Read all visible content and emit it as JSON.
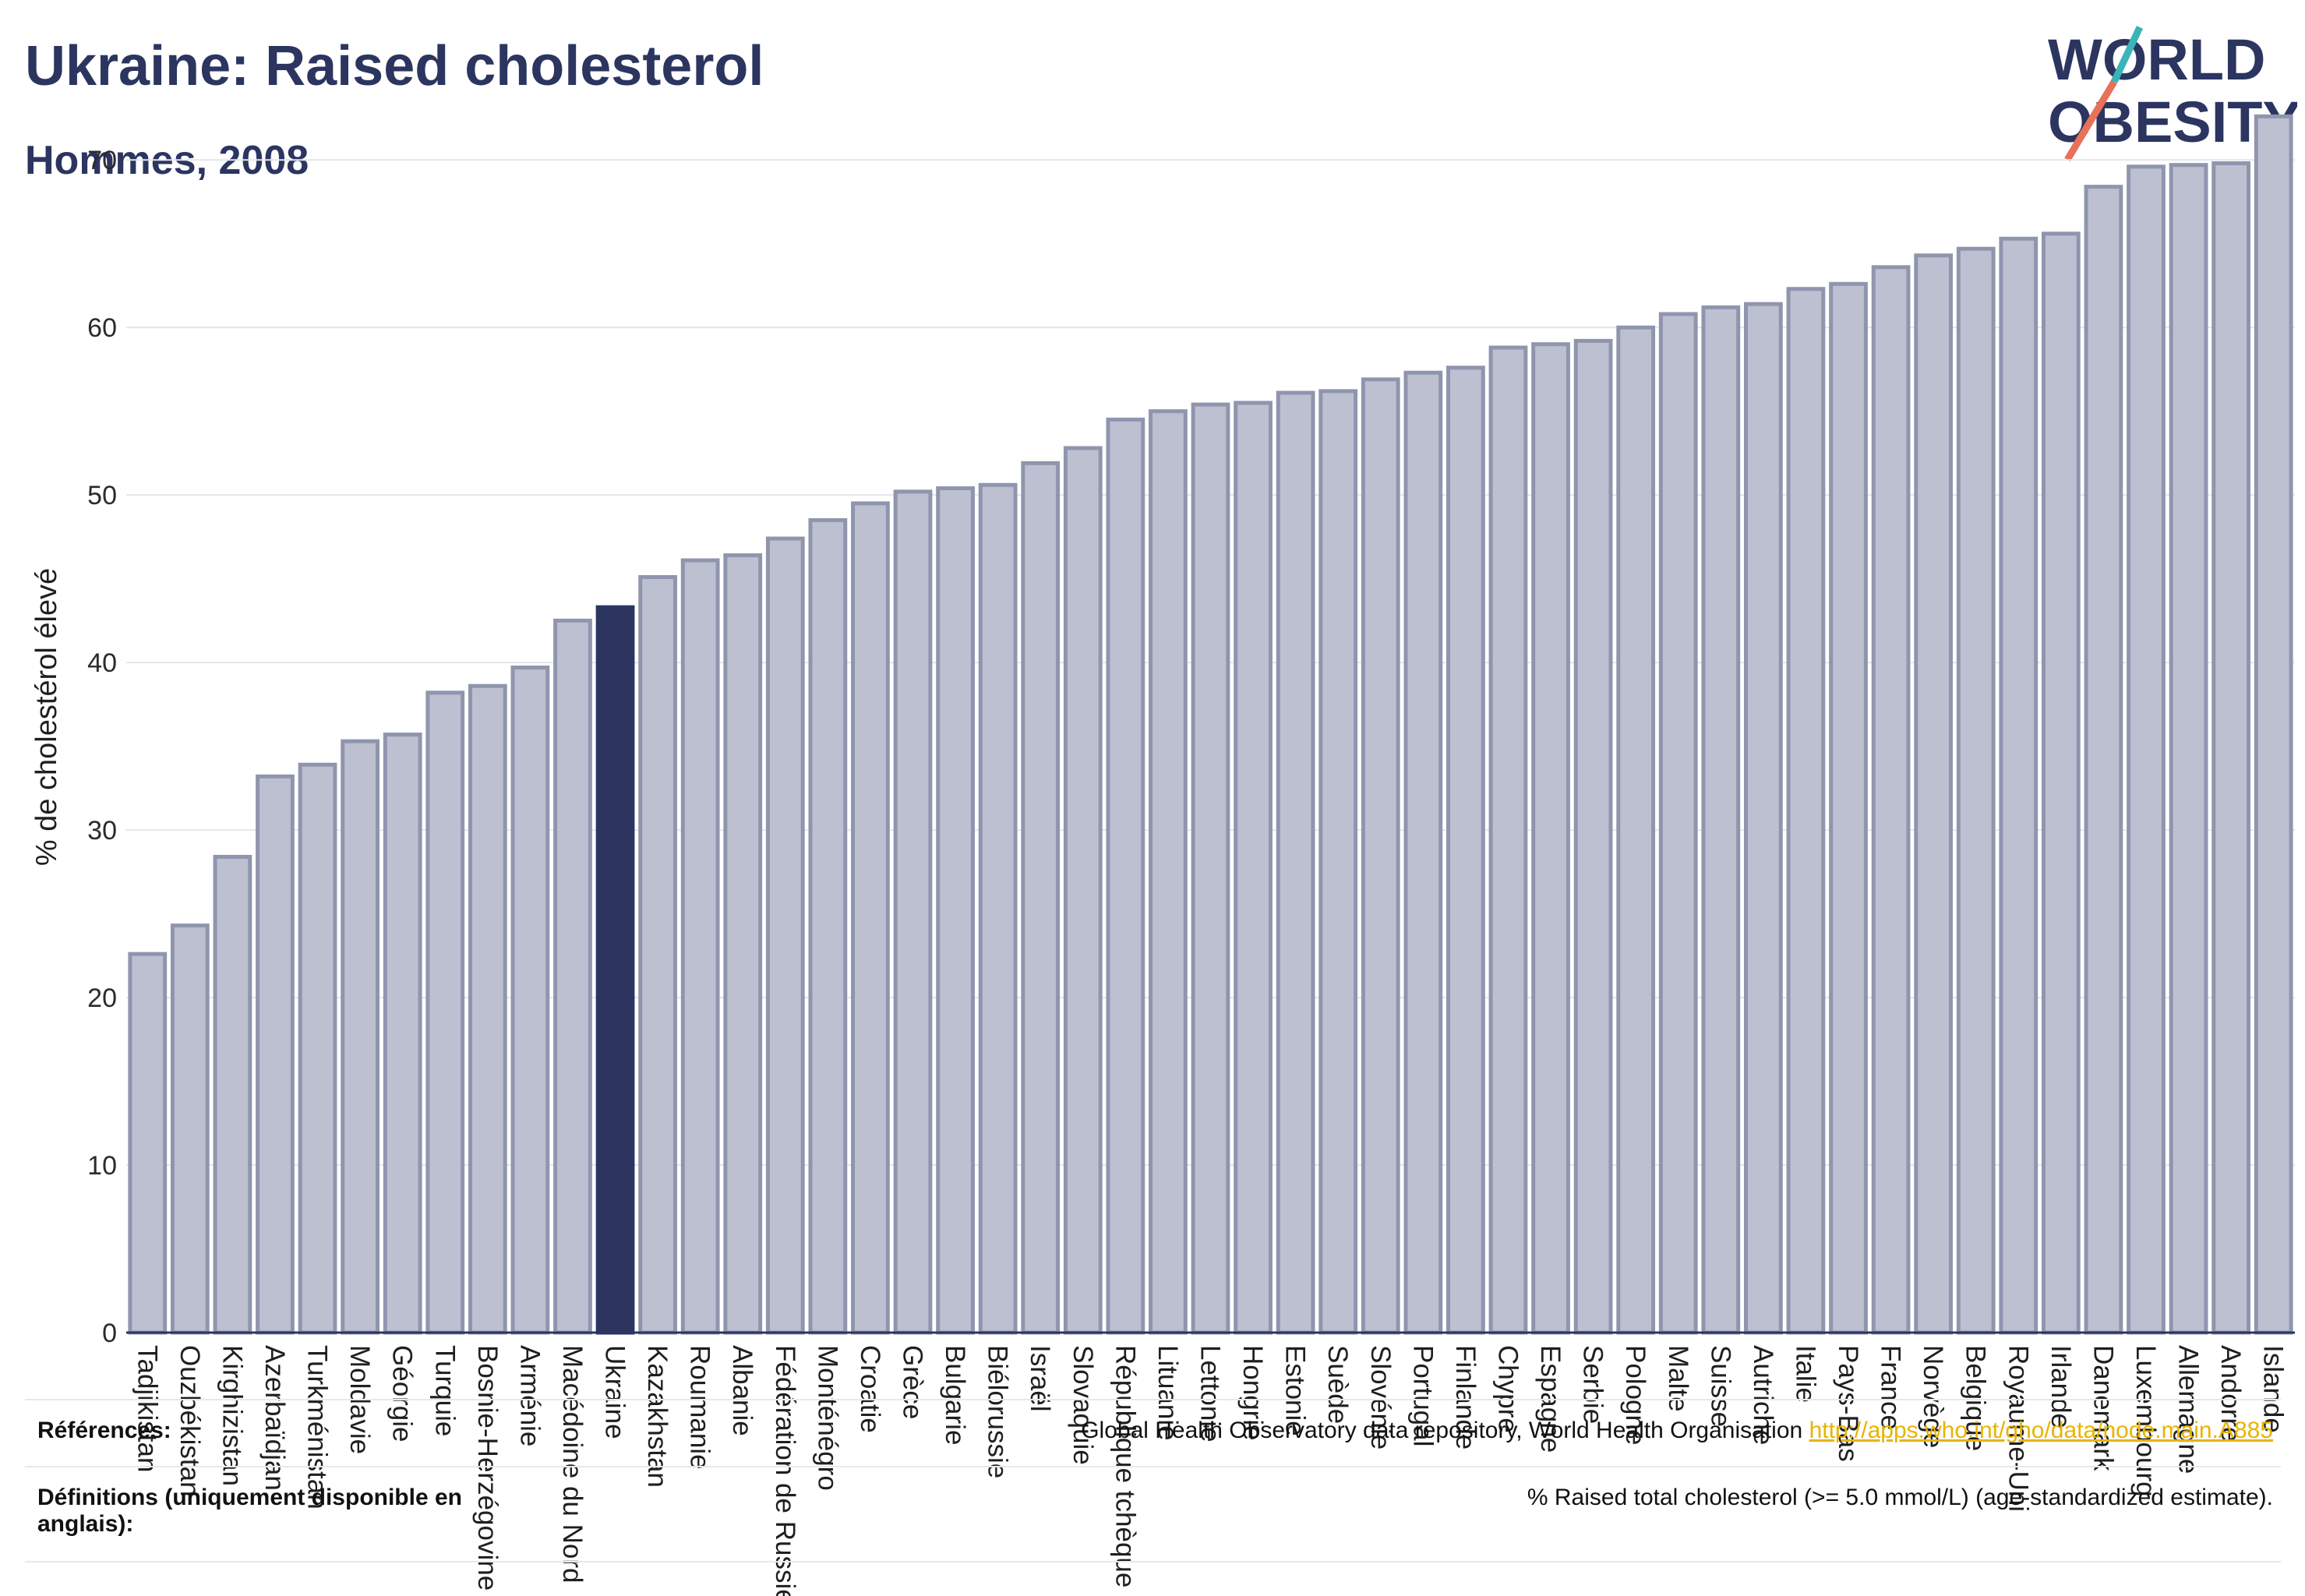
{
  "title": "Ukraine: Raised cholesterol",
  "subtitle": "Hommes, 2008",
  "logo": {
    "line1": "WORLD",
    "line2": "OBESITY",
    "colors": [
      "#2b3560",
      "#e8715a",
      "#3ab4b8"
    ]
  },
  "colors": {
    "bar": "#bcc0d1",
    "bar_border": "#8f95ad",
    "highlight": "#2b3560"
  },
  "chart_data": {
    "type": "bar",
    "ylabel": "% de cholestérol élevé",
    "ylim": [
      0,
      73.5
    ],
    "yticks": [
      0,
      10,
      20,
      30,
      40,
      50,
      60,
      70
    ],
    "grid": true,
    "highlight": "Ukraine",
    "categories": [
      "Tadjikistan",
      "Ouzbékistan",
      "Kirghizistan",
      "Azerbaïdjan",
      "Turkménistan",
      "Moldavie",
      "Géorgie",
      "Turquie",
      "Bosnie-Herzégovine",
      "Arménie",
      "Macédoine du Nord",
      "Ukraine",
      "Kazakhstan",
      "Roumanie",
      "Albanie",
      "Fédération de Russie",
      "Monténégro",
      "Croatie",
      "Grèce",
      "Bulgarie",
      "Biélorussie",
      "Israël",
      "Slovaquie",
      "République tchèque",
      "Lituanie",
      "Lettonie",
      "Hongrie",
      "Estonie",
      "Suède",
      "Slovénie",
      "Portugal",
      "Finlande",
      "Chypre",
      "Espagne",
      "Serbie",
      "Pologne",
      "Malte",
      "Suisse",
      "Autriche",
      "Italie",
      "Pays-Bas",
      "France",
      "Norvège",
      "Belgique",
      "Royaume-Uni",
      "Irlande",
      "Danemark",
      "Luxembourg",
      "Allemagne",
      "Andorre",
      "Islande"
    ],
    "values": [
      22.6,
      24.3,
      28.4,
      33.2,
      33.9,
      35.3,
      35.7,
      38.2,
      38.6,
      39.7,
      42.5,
      43.3,
      45.1,
      46.1,
      46.4,
      47.4,
      48.5,
      49.5,
      50.2,
      50.4,
      50.6,
      51.9,
      52.8,
      54.5,
      55.0,
      55.4,
      55.5,
      56.1,
      56.2,
      56.9,
      57.3,
      57.6,
      58.8,
      59.0,
      59.2,
      60.0,
      60.8,
      61.2,
      61.4,
      62.3,
      62.6,
      63.6,
      64.3,
      64.7,
      65.3,
      65.6,
      68.4,
      69.6,
      69.7,
      69.8,
      72.6
    ]
  },
  "footer": {
    "references_label": "Références:",
    "references_text": "Global Health Observatory data repository, World Health Organisation",
    "references_link": "http://apps.who.int/gho/data/node.main.A885",
    "definitions_label": "Définitions (uniquement disponible en anglais):",
    "definitions_text": "% Raised total cholesterol (>= 5.0 mmol/L) (age-standardized estimate)."
  }
}
